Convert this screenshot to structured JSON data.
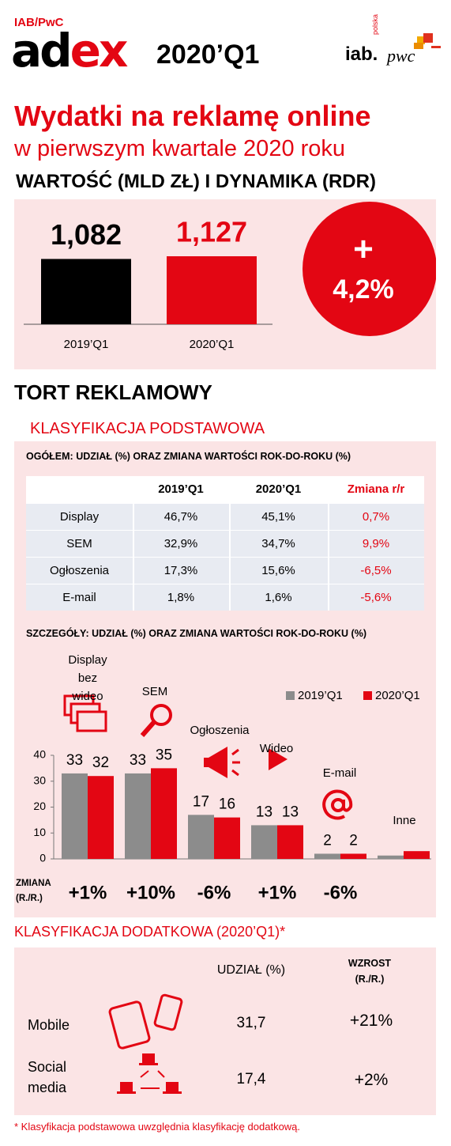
{
  "header": {
    "brand": "IAB/PwC",
    "logo_ad": "ad",
    "logo_ex": "ex",
    "period": "2020’Q1",
    "logo_iab": "iab.",
    "logo_polska": "polska",
    "logo_pwc": "pwc"
  },
  "title": "Wydatki na reklamę online",
  "subtitle": "w pierwszym kwartale 2020 roku",
  "pie_heading": "TORT REKLAMOWY",
  "basic_heading": "KLASYFIKACJA PODSTAWOWA",
  "table": {
    "title": "OGÓŁEM: UDZIAŁ (%) ORAZ ZMIANA WARTOŚCI ROK-DO-ROKU  (%)",
    "header": [
      "2019’Q1",
      "2020’Q1",
      "Zmiana r/r"
    ],
    "rows": [
      [
        "Display",
        "46,7%",
        "45,1%",
        "0,7%"
      ],
      [
        "SEM",
        "32,9%",
        "34,7%",
        "9,9%"
      ],
      [
        "Ogłoszenia",
        "17,3%",
        "15,6%",
        "-6,5%"
      ],
      [
        "E-mail",
        "1,8%",
        "1,6%",
        "-5,6%"
      ]
    ]
  },
  "chart_data": [
    {
      "type": "bar",
      "title": "WARTOŚĆ (MLD ZŁ) I DYNAMIKA (RDR)",
      "categories": [
        "2019’Q1",
        "2020’Q1"
      ],
      "values": [
        1.082,
        1.127
      ],
      "value_labels": [
        "1,082",
        "1,127"
      ],
      "colors": [
        "#000000",
        "#e30613"
      ],
      "annotation": {
        "sign": "+",
        "label": "4,2%"
      }
    },
    {
      "type": "bar",
      "title": "SZCZEGÓŁY: UDZIAŁ (%) ORAZ ZMIANA WARTOŚCI ROK-DO-ROKU (%)",
      "categories": [
        "Display bez wideo",
        "SEM",
        "Ogłoszenia",
        "Wideo",
        "E-mail",
        "Inne"
      ],
      "series": [
        {
          "name": "2019’Q1",
          "color": "#8c8c8c",
          "values": [
            33,
            33,
            17,
            13,
            2,
            1.3
          ],
          "value_labels": [
            "33",
            "33",
            "17",
            "13",
            "2",
            null
          ]
        },
        {
          "name": "2020’Q1",
          "color": "#e30613",
          "values": [
            32,
            35,
            16,
            13,
            2,
            3
          ],
          "value_labels": [
            "32",
            "35",
            "16",
            "13",
            "2",
            null
          ]
        }
      ],
      "ylim": [
        0,
        40
      ],
      "yticks": [
        0,
        10,
        20,
        30,
        40
      ],
      "change_title": "ZMIANA (R./R.)",
      "changes": [
        "+1%",
        "+10%",
        "-6%",
        "+1%",
        "-6%",
        null
      ]
    }
  ],
  "extra": {
    "heading": "KLASYFIKACJA DODATKOWA (2020’Q1)*",
    "columns": [
      "UDZIAŁ (%)",
      "WZROST (R./R.)"
    ],
    "rows": [
      [
        "Mobile",
        "31,7",
        "+21%"
      ],
      [
        "Social media",
        "17,4",
        "+2%"
      ]
    ],
    "footnote": "* Klasyfikacja podstawowa uwzględnia klasyfikację dodatkową."
  }
}
